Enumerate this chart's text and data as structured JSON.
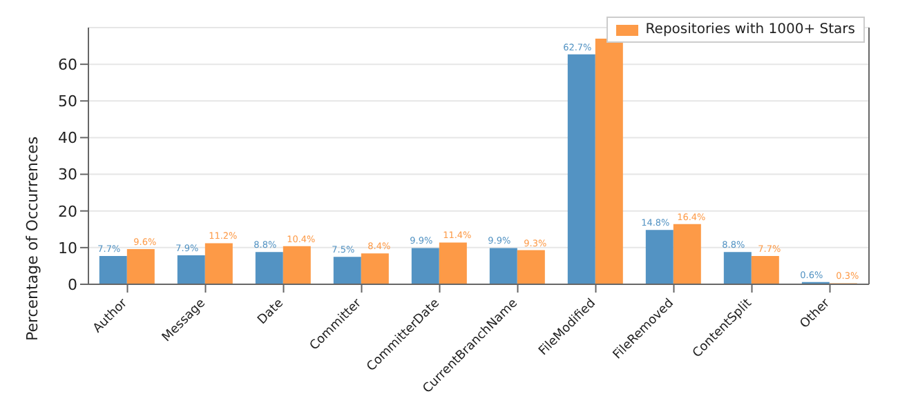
{
  "chart_data": {
    "type": "bar",
    "ylabel": "Percentage of Occurrences",
    "categories": [
      "Author",
      "Message",
      "Date",
      "Committer",
      "CommitterDate",
      "CurrentBranchName",
      "FileModified",
      "FileRemoved",
      "ContentSplit",
      "Other"
    ],
    "series": [
      {
        "color": "#5393c3",
        "values": [
          7.7,
          7.9,
          8.8,
          7.5,
          9.9,
          9.9,
          62.7,
          14.8,
          8.8,
          0.6
        ],
        "value_labels": [
          "7.7%",
          "7.9%",
          "8.8%",
          "7.5%",
          "9.9%",
          "9.9%",
          "62.7%",
          "14.8%",
          "8.8%",
          "0.6%"
        ]
      },
      {
        "name": "Repositories with 1000+ Stars",
        "color": "#fd9a47",
        "values": [
          9.6,
          11.2,
          10.4,
          8.4,
          11.4,
          9.3,
          67,
          16.4,
          7.7,
          0.3
        ],
        "value_labels": [
          "9.6%",
          "11.2%",
          "10.4%",
          "8.4%",
          "11.4%",
          "9.3%",
          null,
          "16.4%",
          "7.7%",
          "0.3%"
        ]
      }
    ],
    "ylim": [
      0,
      70
    ],
    "yticks": [
      0,
      10,
      20,
      30,
      40,
      50,
      60
    ],
    "grid": "y",
    "legend": "top right"
  }
}
